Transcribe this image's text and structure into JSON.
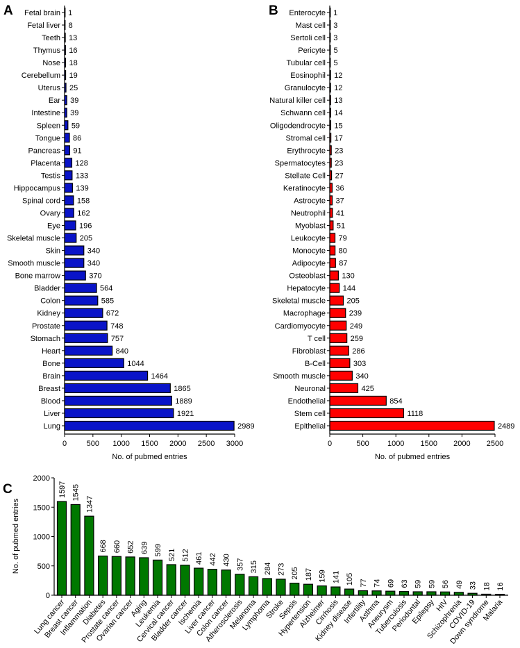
{
  "chart_data": [
    {
      "panel": "A",
      "type": "bar",
      "orientation": "horizontal",
      "categories": [
        "Fetal brain",
        "Fetal liver",
        "Teeth",
        "Thymus",
        "Nose",
        "Cerebellum",
        "Uterus",
        "Ear",
        "Intestine",
        "Spleen",
        "Tongue",
        "Pancreas",
        "Placenta",
        "Testis",
        "Hippocampus",
        "Spinal cord",
        "Ovary",
        "Eye",
        "Skeletal muscle",
        "Skin",
        "Smooth muscle",
        "Bone marrow",
        "Bladder",
        "Colon",
        "Kidney",
        "Prostate",
        "Stomach",
        "Heart",
        "Bone",
        "Brain",
        "Breast",
        "Blood",
        "Liver",
        "Lung"
      ],
      "values": [
        1,
        8,
        13,
        16,
        18,
        19,
        25,
        39,
        39,
        59,
        86,
        91,
        128,
        133,
        139,
        158,
        162,
        196,
        205,
        340,
        340,
        370,
        564,
        585,
        672,
        748,
        757,
        840,
        1044,
        1464,
        1865,
        1889,
        1921,
        2989
      ],
      "xlabel": "No. of pubmed entries",
      "xlim": [
        0,
        3000
      ],
      "xticks": [
        0,
        500,
        1000,
        1500,
        2000,
        2500,
        3000
      ],
      "color": "#0a14c8"
    },
    {
      "panel": "B",
      "type": "bar",
      "orientation": "horizontal",
      "categories": [
        "Enterocyte",
        "Mast cell",
        "Sertoli cell",
        "Pericyte",
        "Tubular cell",
        "Eosinophil",
        "Granulocyte",
        "Natural killer cell",
        "Schwann cell",
        "Oligodendrocyte",
        "Stromal cell",
        "Erythrocyte",
        "Spermatocytes",
        "Stellate Cell",
        "Keratinocyte",
        "Astrocyte",
        "Neutrophil",
        "Myoblast",
        "Leukocyte",
        "Monocyte",
        "Adipocyte",
        "Osteoblast",
        "Hepatocyte",
        "Skeletal muscle",
        "Macrophage",
        "Cardiomyocyte",
        "T cell",
        "Fibroblast",
        "B-Cell",
        "Smooth muscle",
        "Neuronal",
        "Endothelial",
        "Stem cell",
        "Epithelial"
      ],
      "values": [
        1,
        3,
        3,
        5,
        5,
        12,
        12,
        13,
        14,
        15,
        17,
        23,
        23,
        27,
        36,
        37,
        41,
        51,
        79,
        80,
        87,
        130,
        144,
        205,
        239,
        249,
        259,
        286,
        303,
        340,
        425,
        854,
        1118,
        2489
      ],
      "xlabel": "No. of pubmed entries",
      "xlim": [
        0,
        2500
      ],
      "xticks": [
        0,
        500,
        1000,
        1500,
        2000,
        2500
      ],
      "color": "#ff0000"
    },
    {
      "panel": "C",
      "type": "bar",
      "orientation": "vertical",
      "categories": [
        "Lung cancer",
        "Breast cancer",
        "Inflammation",
        "Diabetes",
        "Prostate cancer",
        "Ovarian cancer",
        "Aging",
        "Leukemia",
        "Cervical cancer",
        "Bladder cancer",
        "Ischemia",
        "Liver cancer",
        "Colon cancer",
        "Atherosclerosis",
        "Melanoma",
        "Lymphoma",
        "Stroke",
        "Sepsis",
        "Hypertension",
        "Alzheimer",
        "Cirrhosis",
        "Kidney disease",
        "Infertility",
        "Asthma",
        "Aneurysm",
        "Tuberculosis",
        "Periodontal",
        "Epilepsy",
        "HIV",
        "Schizophrenia",
        "COVID-19",
        "Down syndrome",
        "Malaria"
      ],
      "values": [
        1597,
        1545,
        1347,
        668,
        660,
        652,
        639,
        599,
        521,
        512,
        461,
        442,
        430,
        357,
        315,
        284,
        273,
        205,
        187,
        159,
        141,
        105,
        77,
        74,
        69,
        63,
        59,
        59,
        56,
        49,
        33,
        18,
        16
      ],
      "ylabel": "No. of pubmed entries",
      "ylim": [
        0,
        2000
      ],
      "yticks": [
        0,
        500,
        1000,
        1500,
        2000
      ],
      "color": "#007800"
    }
  ]
}
